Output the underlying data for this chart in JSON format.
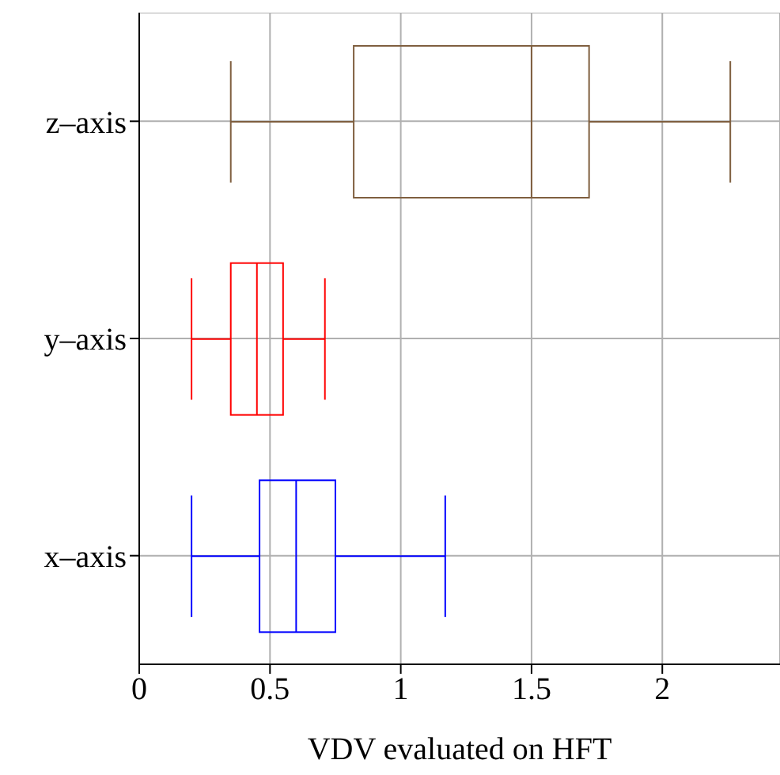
{
  "chart_data": {
    "type": "box",
    "orientation": "horizontal",
    "xlabel": "VDV evaluated on HFT",
    "categories": [
      "z–axis",
      "y–axis",
      "x–axis"
    ],
    "colors": [
      "#7f5f3f",
      "#ff0000",
      "#0000ff"
    ],
    "boxes": [
      {
        "low": 0.35,
        "q1": 0.82,
        "median": 1.5,
        "q3": 1.72,
        "high": 2.26
      },
      {
        "low": 0.2,
        "q1": 0.35,
        "median": 0.45,
        "q3": 0.55,
        "high": 0.71
      },
      {
        "low": 0.2,
        "q1": 0.46,
        "median": 0.6,
        "q3": 0.75,
        "high": 1.17
      }
    ],
    "xlim": [
      0,
      2.45
    ],
    "xticks": [
      0,
      0.5,
      1,
      1.5,
      2
    ],
    "grid": true
  }
}
